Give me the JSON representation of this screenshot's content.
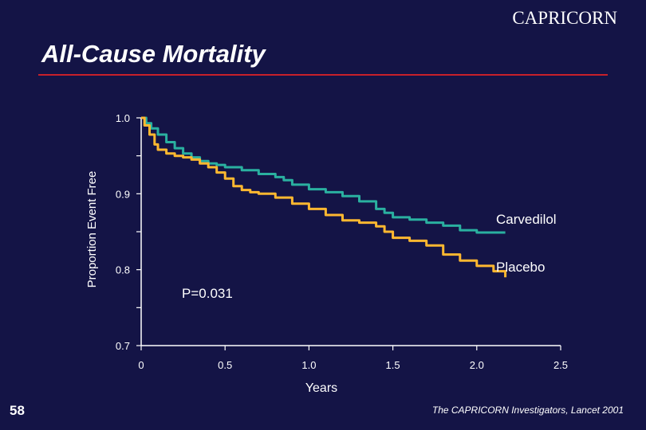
{
  "header": {
    "brand": "CAPRICORN",
    "title": "All-Cause Mortality"
  },
  "footer": {
    "page_number": "58",
    "citation": "The CAPRICORN Investigators, Lancet 2001"
  },
  "colors": {
    "background": "#141446",
    "rule": "#c8202a",
    "carvedilol": "#2ab0a0",
    "placebo": "#ffb830",
    "axis": "#ffffff"
  },
  "chart_data": {
    "type": "line",
    "title": "All-Cause Mortality",
    "xlabel": "Years",
    "ylabel": "Proportion Event Free",
    "xlim": [
      0,
      2.5
    ],
    "ylim": [
      0.7,
      1.0
    ],
    "x_ticks": [
      "0",
      "0.5",
      "1.0",
      "1.5",
      "2.0",
      "2.5"
    ],
    "y_ticks": [
      "0.7",
      "0.8",
      "0.9",
      "1.0"
    ],
    "annotation": "P=0.031",
    "grid": false,
    "series": [
      {
        "name": "Carvedilol",
        "x": [
          0,
          0.03,
          0.06,
          0.1,
          0.15,
          0.2,
          0.25,
          0.3,
          0.35,
          0.4,
          0.45,
          0.5,
          0.6,
          0.7,
          0.8,
          0.85,
          0.9,
          1.0,
          1.1,
          1.2,
          1.3,
          1.4,
          1.45,
          1.5,
          1.6,
          1.7,
          1.8,
          1.9,
          2.0,
          2.1,
          2.17
        ],
        "y": [
          1.0,
          0.993,
          0.986,
          0.978,
          0.968,
          0.96,
          0.953,
          0.948,
          0.943,
          0.94,
          0.938,
          0.935,
          0.931,
          0.926,
          0.922,
          0.918,
          0.912,
          0.906,
          0.902,
          0.897,
          0.89,
          0.88,
          0.875,
          0.869,
          0.866,
          0.862,
          0.858,
          0.852,
          0.849,
          0.849,
          0.849
        ]
      },
      {
        "name": "Placebo",
        "x": [
          0,
          0.02,
          0.05,
          0.08,
          0.1,
          0.15,
          0.2,
          0.25,
          0.3,
          0.35,
          0.4,
          0.45,
          0.5,
          0.55,
          0.6,
          0.65,
          0.7,
          0.8,
          0.9,
          1.0,
          1.1,
          1.2,
          1.3,
          1.4,
          1.45,
          1.5,
          1.6,
          1.7,
          1.8,
          1.9,
          2.0,
          2.1,
          2.17
        ],
        "y": [
          1.0,
          0.99,
          0.978,
          0.965,
          0.958,
          0.953,
          0.95,
          0.948,
          0.945,
          0.94,
          0.935,
          0.928,
          0.92,
          0.91,
          0.905,
          0.902,
          0.9,
          0.895,
          0.887,
          0.88,
          0.872,
          0.865,
          0.862,
          0.857,
          0.85,
          0.842,
          0.838,
          0.832,
          0.82,
          0.812,
          0.805,
          0.798,
          0.79
        ]
      }
    ]
  }
}
